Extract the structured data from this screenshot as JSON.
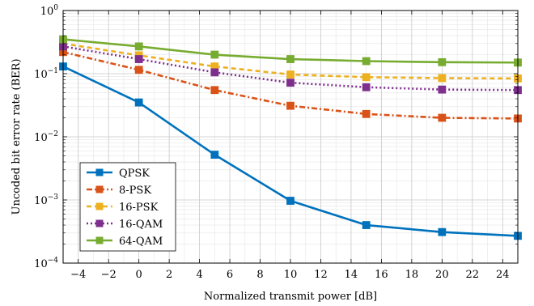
{
  "chart_data": {
    "type": "line",
    "xlabel": "Normalized transmit power [dB]",
    "ylabel": "Uncoded bit error rate (BER)",
    "xlim": [
      -5,
      25
    ],
    "ylim": [
      0.0001,
      1
    ],
    "yscale": "log",
    "grid": true,
    "legend_position": "bottom-left",
    "x_ticks": [
      -4,
      -2,
      0,
      2,
      4,
      6,
      8,
      10,
      12,
      14,
      16,
      18,
      20,
      22,
      24
    ],
    "y_ticks": [
      {
        "base": "10",
        "exp": "-4",
        "value": 0.0001
      },
      {
        "base": "10",
        "exp": "-3",
        "value": 0.001
      },
      {
        "base": "10",
        "exp": "-2",
        "value": 0.01
      },
      {
        "base": "10",
        "exp": "-1",
        "value": 0.1
      },
      {
        "base": "10",
        "exp": "0",
        "value": 1
      }
    ],
    "x": [
      -5,
      0,
      5,
      10,
      15,
      20,
      25
    ],
    "series": [
      {
        "name": "QPSK",
        "color": "#0072bd",
        "dash": "solid",
        "values": [
          0.13,
          0.035,
          0.0052,
          0.00097,
          0.0004,
          0.00031,
          0.00027
        ]
      },
      {
        "name": "8-PSK",
        "color": "#d95319",
        "dash": "dashdot",
        "values": [
          0.22,
          0.115,
          0.055,
          0.031,
          0.023,
          0.02,
          0.0195
        ]
      },
      {
        "name": "16-PSK",
        "color": "#edb120",
        "dash": "dashed",
        "values": [
          0.3,
          0.195,
          0.13,
          0.097,
          0.088,
          0.085,
          0.084
        ]
      },
      {
        "name": "16-QAM",
        "color": "#7e2f8e",
        "dash": "dotted",
        "values": [
          0.27,
          0.17,
          0.105,
          0.072,
          0.061,
          0.056,
          0.055
        ]
      },
      {
        "name": "64-QAM",
        "color": "#77ac30",
        "dash": "solid",
        "values": [
          0.35,
          0.27,
          0.2,
          0.17,
          0.158,
          0.152,
          0.15
        ]
      }
    ]
  }
}
